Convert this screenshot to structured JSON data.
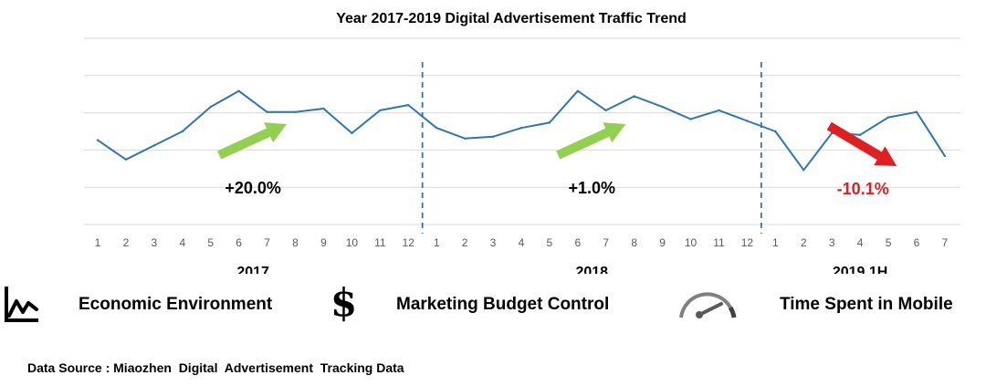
{
  "chart_data": {
    "type": "line",
    "title": "Year 2017-2019  Digital Advertisement  Traffic Trend",
    "x": [
      "1",
      "2",
      "3",
      "4",
      "5",
      "6",
      "7",
      "8",
      "9",
      "10",
      "11",
      "12",
      "1",
      "2",
      "3",
      "4",
      "5",
      "6",
      "7",
      "8",
      "9",
      "10",
      "11",
      "12",
      "1",
      "2",
      "3",
      "4",
      "5",
      "6",
      "7"
    ],
    "values": [
      48,
      37,
      45,
      53,
      67,
      76,
      64,
      64,
      66,
      52,
      65,
      68,
      55,
      49,
      50,
      55,
      58,
      76,
      65,
      73,
      67,
      60,
      65,
      59,
      53,
      31,
      52,
      51,
      61,
      64,
      39
    ],
    "ylim": [
      0,
      106
    ],
    "grid": true,
    "line_color": "#2E75B6",
    "year_groups": [
      {
        "label": "2017",
        "start": 0,
        "count": 12
      },
      {
        "label": "2018",
        "start": 12,
        "count": 12
      },
      {
        "label": "2019 1H",
        "start": 24,
        "count": 7
      }
    ],
    "annotations": [
      {
        "text": "+20.0%",
        "direction": "up",
        "color": "#000000",
        "arrow_color": "#92D050",
        "segment": 0
      },
      {
        "text": "+1.0%",
        "direction": "up",
        "color": "#000000",
        "arrow_color": "#92D050",
        "segment": 1
      },
      {
        "text": "-10.1%",
        "direction": "down",
        "color": "#E02020",
        "arrow_color": "#E02020",
        "segment": 2
      }
    ]
  },
  "factors": {
    "economic": "Economic Environment",
    "budget": "Marketing Budget Control",
    "mobile": "Time Spent in Mobile"
  },
  "icons": {
    "economic": "line-chart-icon",
    "budget": "dollar-sign-icon",
    "mobile": "speedometer-icon",
    "dollar_glyph": "$"
  },
  "source": "Data Source : Miaozhen  Digital  Advertisement  Tracking Data"
}
